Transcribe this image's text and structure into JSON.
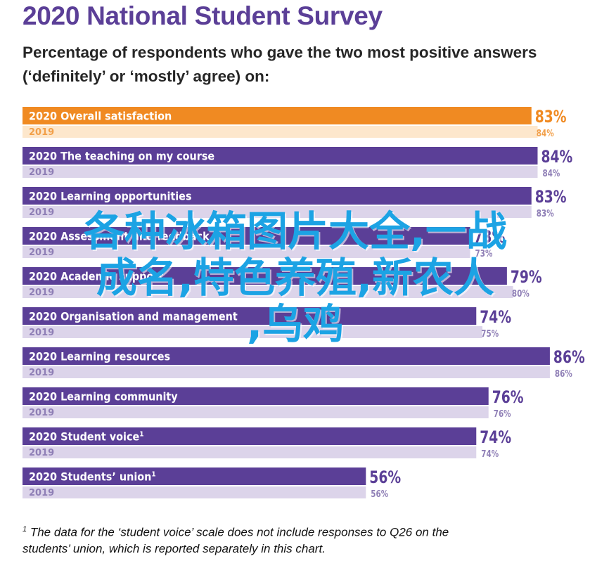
{
  "title": "2020 National Student Survey",
  "subtitle_line1": "Percentage of respondents who gave the two most positive answers",
  "subtitle_line2": "(‘definitely’ or ‘mostly’ agree) on:",
  "footnote_marker": "1",
  "footnote_line1": " The data for the ‘student voice’ scale does not include responses to Q26 on the",
  "footnote_line2": "students’ union, which is reported separately in this chart.",
  "watermark_line1": "各种冰箱图片大全,一战",
  "watermark_line2": "成名,特色养殖,新农人",
  "watermark_line3": ",乌鸡",
  "colors": {
    "title": "#5b3f97",
    "highlight_2020": "#f08a22",
    "highlight_2019": "#fde7cc",
    "bar_2020": "#5b3f97",
    "bar_2019": "#dcd4ea",
    "label_2019_highlight": "#f2a04a",
    "label_2019": "#8f7fb6",
    "watermark": "#1ca3e4"
  },
  "chart_data": {
    "type": "bar",
    "orientation": "horizontal",
    "categories": [
      "Overall satisfaction",
      "The teaching on my course",
      "Learning opportunities",
      "Assessment and feedback",
      "Academic support",
      "Organisation and management",
      "Learning resources",
      "Learning community",
      "Student voice",
      "Students’ union"
    ],
    "superscripts": [
      "",
      "",
      "",
      "",
      "",
      "",
      "",
      "",
      "1",
      "1"
    ],
    "highlight_index": 0,
    "series": [
      {
        "name": "2020",
        "values": [
          83,
          84,
          83,
          73,
          79,
          74,
          86,
          76,
          74,
          56
        ]
      },
      {
        "name": "2019",
        "values": [
          84,
          84,
          83,
          73,
          80,
          75,
          86,
          76,
          74,
          56
        ]
      }
    ],
    "value_suffix": "%",
    "xlim": [
      0,
      100
    ]
  }
}
